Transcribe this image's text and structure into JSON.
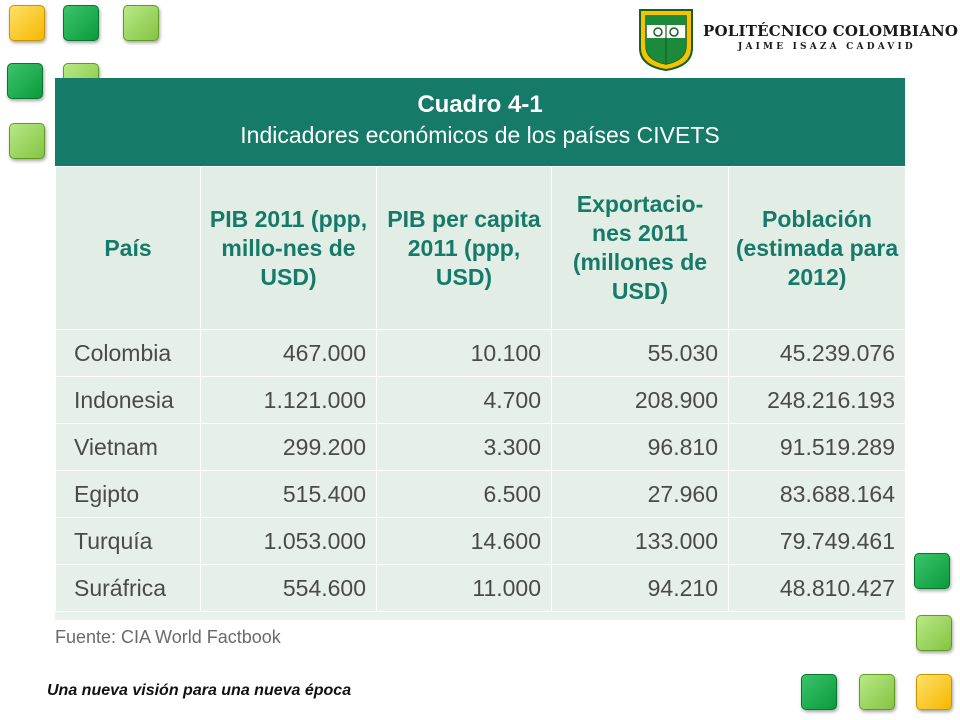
{
  "header": {
    "institution_name": "POLITÉCNICO COLOMBIANO",
    "institution_subtitle": "JAIME ISAZA CADAVID"
  },
  "table": {
    "title_line1": "Cuadro 4-1",
    "title_line2": "Indicadores económicos de los países CIVETS",
    "headers": [
      "País",
      "PIB 2011 (ppp, millo-nes de USD)",
      "PIB per capita 2011 (ppp, USD)",
      "Exportacio-nes 2011 (millones de USD)",
      "Población (estimada para 2012)"
    ],
    "rows": [
      [
        "Colombia",
        "467.000",
        "10.100",
        "55.030",
        "45.239.076"
      ],
      [
        "Indonesia",
        "1.121.000",
        "4.700",
        "208.900",
        "248.216.193"
      ],
      [
        "Vietnam",
        "299.200",
        "3.300",
        "96.810",
        "91.519.289"
      ],
      [
        "Egipto",
        "515.400",
        "6.500",
        "27.960",
        "83.688.164"
      ],
      [
        "Turquía",
        "1.053.000",
        "14.600",
        "133.000",
        "79.749.461"
      ],
      [
        "Suráfrica",
        "554.600",
        "11.000",
        "94.210",
        "48.810.427"
      ]
    ],
    "source": "Fuente: CIA World Factbook"
  },
  "footer": {
    "slogan": "Una nueva visión para una nueva época"
  },
  "colors": {
    "teal_header": "#157a67",
    "table_bg": "#e6efe9",
    "accent_yellow": "#f5b800",
    "accent_dark_green": "#0a9a3c",
    "accent_light_green": "#84c441"
  }
}
